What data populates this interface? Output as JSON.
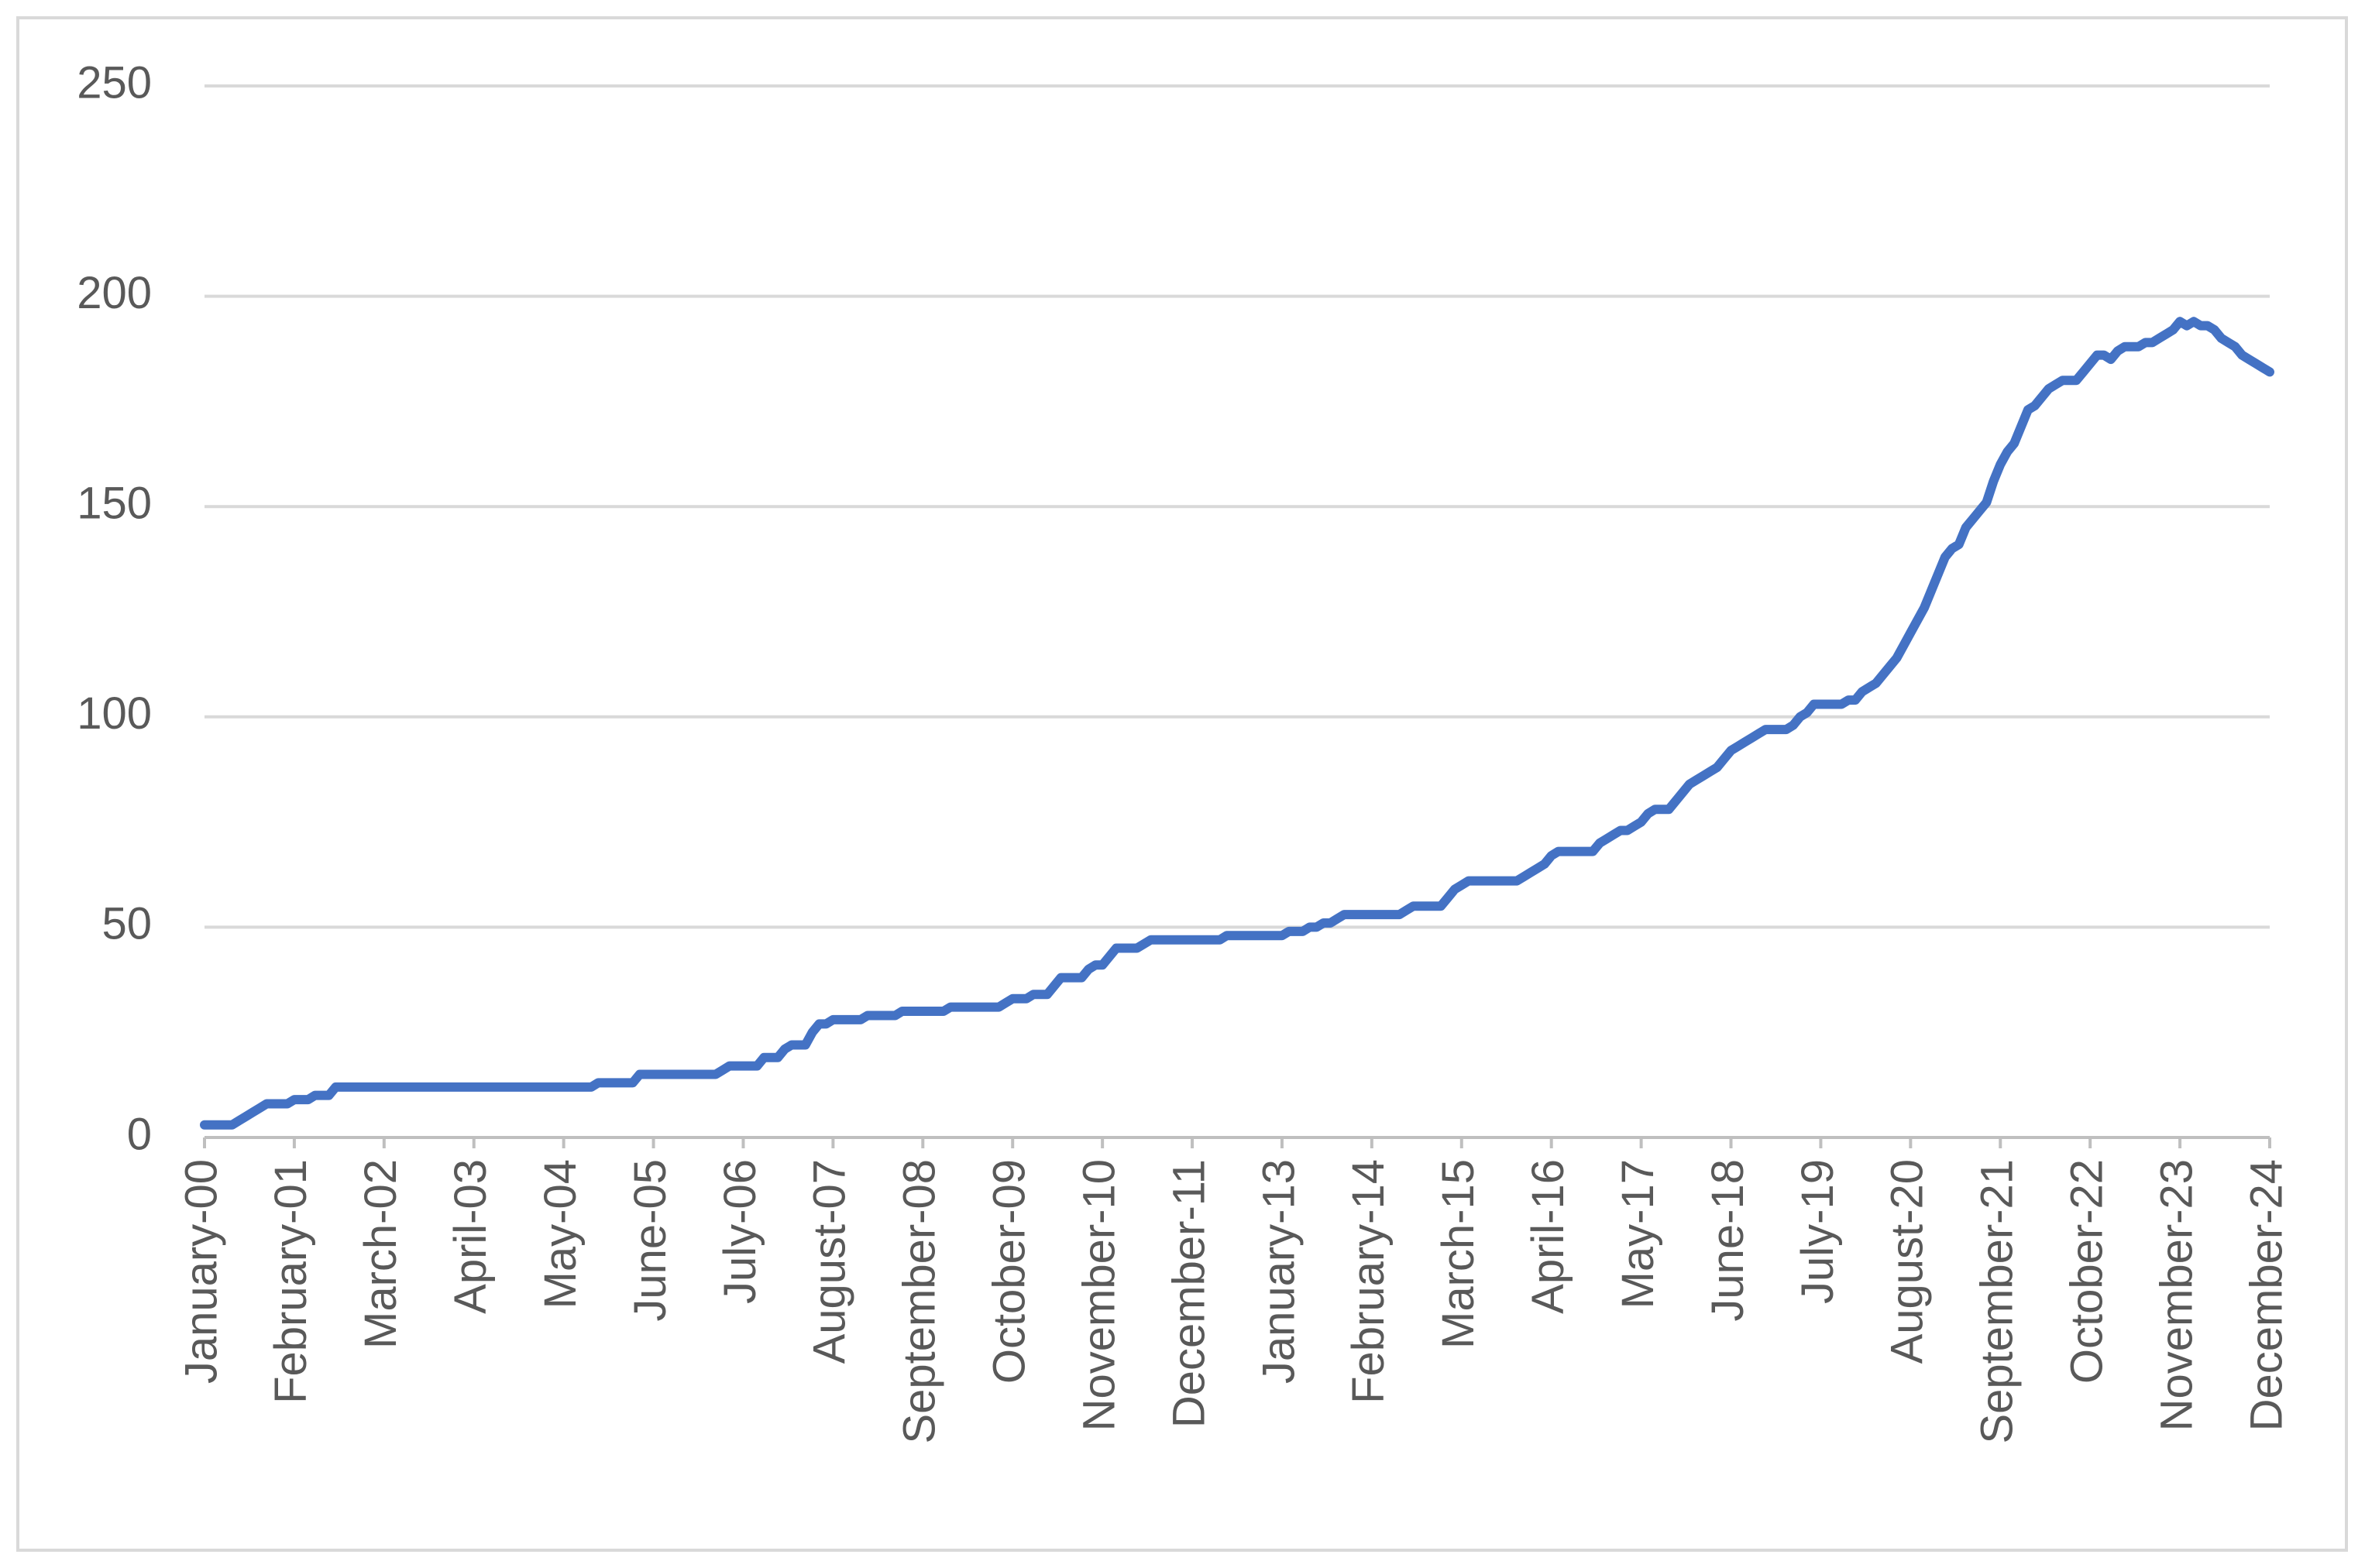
{
  "chart_data": {
    "type": "line",
    "categories": [
      "January-00",
      null,
      null,
      null,
      null,
      null,
      null,
      null,
      null,
      null,
      null,
      null,
      null,
      "February-01",
      null,
      null,
      null,
      null,
      null,
      null,
      null,
      null,
      null,
      null,
      null,
      null,
      "March-02",
      null,
      null,
      null,
      null,
      null,
      null,
      null,
      null,
      null,
      null,
      null,
      null,
      "April-03",
      null,
      null,
      null,
      null,
      null,
      null,
      null,
      null,
      null,
      null,
      null,
      null,
      "May-04",
      null,
      null,
      null,
      null,
      null,
      null,
      null,
      null,
      null,
      null,
      null,
      null,
      "June-05",
      null,
      null,
      null,
      null,
      null,
      null,
      null,
      null,
      null,
      null,
      null,
      null,
      "July-06",
      null,
      null,
      null,
      null,
      null,
      null,
      null,
      null,
      null,
      null,
      null,
      null,
      "August-07",
      null,
      null,
      null,
      null,
      null,
      null,
      null,
      null,
      null,
      null,
      null,
      null,
      "September-08",
      null,
      null,
      null,
      null,
      null,
      null,
      null,
      null,
      null,
      null,
      null,
      null,
      "October-09",
      null,
      null,
      null,
      null,
      null,
      null,
      null,
      null,
      null,
      null,
      null,
      null,
      "November-10",
      null,
      null,
      null,
      null,
      null,
      null,
      null,
      null,
      null,
      null,
      null,
      null,
      "December-11",
      null,
      null,
      null,
      null,
      null,
      null,
      null,
      null,
      null,
      null,
      null,
      null,
      "January-13",
      null,
      null,
      null,
      null,
      null,
      null,
      null,
      null,
      null,
      null,
      null,
      null,
      "February-14",
      null,
      null,
      null,
      null,
      null,
      null,
      null,
      null,
      null,
      null,
      null,
      null,
      "March-15",
      null,
      null,
      null,
      null,
      null,
      null,
      null,
      null,
      null,
      null,
      null,
      null,
      "April-16",
      null,
      null,
      null,
      null,
      null,
      null,
      null,
      null,
      null,
      null,
      null,
      null,
      "May-17",
      null,
      null,
      null,
      null,
      null,
      null,
      null,
      null,
      null,
      null,
      null,
      null,
      "June-18",
      null,
      null,
      null,
      null,
      null,
      null,
      null,
      null,
      null,
      null,
      null,
      null,
      "July-19",
      null,
      null,
      null,
      null,
      null,
      null,
      null,
      null,
      null,
      null,
      null,
      null,
      "August-20",
      null,
      null,
      null,
      null,
      null,
      null,
      null,
      null,
      null,
      null,
      null,
      null,
      "September-21",
      null,
      null,
      null,
      null,
      null,
      null,
      null,
      null,
      null,
      null,
      null,
      null,
      "October-22",
      null,
      null,
      null,
      null,
      null,
      null,
      null,
      null,
      null,
      null,
      null,
      null,
      "November-23",
      null,
      null,
      null,
      null,
      null,
      null,
      null,
      null,
      null,
      null,
      null,
      null,
      "December-24"
    ],
    "values": [
      3,
      3,
      3,
      3,
      3,
      4,
      5,
      6,
      7,
      8,
      8,
      8,
      8,
      9,
      9,
      9,
      10,
      10,
      10,
      12,
      12,
      12,
      12,
      12,
      12,
      12,
      12,
      12,
      12,
      12,
      12,
      12,
      12,
      12,
      12,
      12,
      12,
      12,
      12,
      12,
      12,
      12,
      12,
      12,
      12,
      12,
      12,
      12,
      12,
      12,
      12,
      12,
      12,
      12,
      12,
      12,
      12,
      13,
      13,
      13,
      13,
      13,
      13,
      15,
      15,
      15,
      15,
      15,
      15,
      15,
      15,
      15,
      15,
      15,
      15,
      16,
      17,
      17,
      17,
      17,
      17,
      19,
      19,
      19,
      21,
      22,
      22,
      22,
      25,
      27,
      27,
      28,
      28,
      28,
      28,
      28,
      29,
      29,
      29,
      29,
      29,
      30,
      30,
      30,
      30,
      30,
      30,
      30,
      31,
      31,
      31,
      31,
      31,
      31,
      31,
      31,
      32,
      33,
      33,
      33,
      34,
      34,
      34,
      36,
      38,
      38,
      38,
      38,
      40,
      41,
      41,
      43,
      45,
      45,
      45,
      45,
      46,
      47,
      47,
      47,
      47,
      47,
      47,
      47,
      47,
      47,
      47,
      47,
      48,
      48,
      48,
      48,
      48,
      48,
      48,
      48,
      48,
      49,
      49,
      49,
      50,
      50,
      51,
      51,
      52,
      53,
      53,
      53,
      53,
      53,
      53,
      53,
      53,
      53,
      54,
      55,
      55,
      55,
      55,
      55,
      57,
      59,
      60,
      61,
      61,
      61,
      61,
      61,
      61,
      61,
      61,
      62,
      63,
      64,
      65,
      67,
      68,
      68,
      68,
      68,
      68,
      68,
      70,
      71,
      72,
      73,
      73,
      74,
      75,
      77,
      78,
      78,
      78,
      80,
      82,
      84,
      85,
      86,
      87,
      88,
      90,
      92,
      93,
      94,
      95,
      96,
      97,
      97,
      97,
      97,
      98,
      100,
      101,
      103,
      103,
      103,
      103,
      103,
      104,
      104,
      106,
      107,
      108,
      110,
      112,
      114,
      117,
      120,
      123,
      126,
      130,
      134,
      138,
      140,
      141,
      145,
      147,
      149,
      151,
      156,
      160,
      163,
      165,
      169,
      173,
      174,
      176,
      178,
      179,
      180,
      180,
      180,
      182,
      184,
      186,
      186,
      185,
      187,
      188,
      188,
      188,
      189,
      189,
      190,
      191,
      192,
      194,
      193,
      194,
      193,
      193,
      192,
      190,
      189,
      188,
      186,
      185,
      184,
      183,
      182
    ],
    "color": "#4472c4",
    "ylim": [
      0,
      250
    ],
    "yticks": [
      0,
      50,
      100,
      150,
      200,
      250
    ],
    "grid": true
  }
}
